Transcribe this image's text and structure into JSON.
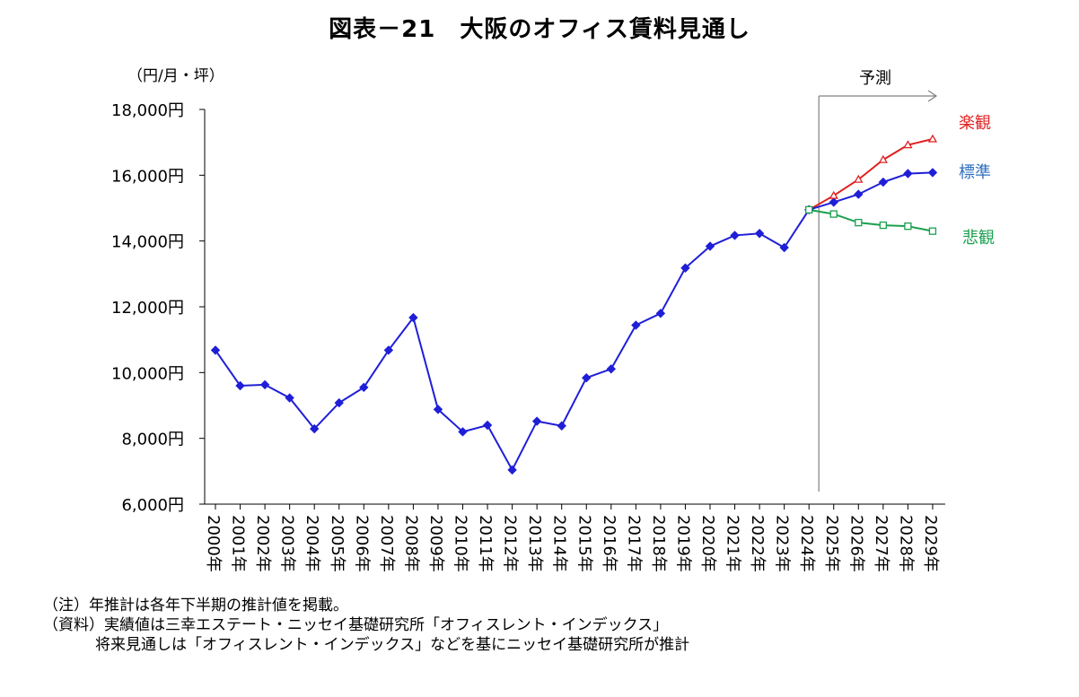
{
  "title": "図表－21　大阪のオフィス賃料見通し",
  "notes": {
    "note": "（注）年推計は各年下半期の推計値を掲載。",
    "source1": "（資料）実績値は三幸エステート・ニッセイ基礎研究所「オフィスレント・インデックス」",
    "source2": "将来見通しは「オフィスレント・インデックス」などを基にニッセイ基礎研究所が推計"
  },
  "chart_data": {
    "type": "line",
    "unit_label": "（円/月・坪）",
    "forecast_label": "予測",
    "categories": [
      "2000年",
      "2001年",
      "2002年",
      "2003年",
      "2004年",
      "2005年",
      "2006年",
      "2007年",
      "2008年",
      "2009年",
      "2010年",
      "2011年",
      "2012年",
      "2013年",
      "2014年",
      "2015年",
      "2016年",
      "2017年",
      "2018年",
      "2019年",
      "2020年",
      "2021年",
      "2022年",
      "2023年",
      "2024年",
      "2025年",
      "2026年",
      "2027年",
      "2028年",
      "2029年"
    ],
    "ylim": [
      6000,
      18000
    ],
    "yticks": [
      6000,
      8000,
      10000,
      12000,
      14000,
      16000,
      18000
    ],
    "ytick_labels": [
      "6,000円",
      "8,000円",
      "10,000円",
      "12,000円",
      "14,000円",
      "16,000円",
      "18,000円"
    ],
    "forecast_start": "2024年",
    "series": [
      {
        "name": "標準",
        "color": "#1f1fd8",
        "marker": "diamond",
        "label_color": "#2f6fbf",
        "values": [
          10680,
          9600,
          9630,
          9230,
          8290,
          9080,
          9550,
          10680,
          11670,
          8880,
          8200,
          8400,
          7040,
          8520,
          8380,
          9840,
          10110,
          11440,
          11800,
          13180,
          13840,
          14170,
          14230,
          13800,
          14950,
          15180,
          15420,
          15790,
          16050,
          16080
        ]
      },
      {
        "name": "楽観",
        "color": "#e02020",
        "marker": "triangle",
        "label_color": "#e02020",
        "values": [
          null,
          null,
          null,
          null,
          null,
          null,
          null,
          null,
          null,
          null,
          null,
          null,
          null,
          null,
          null,
          null,
          null,
          null,
          null,
          null,
          null,
          null,
          null,
          null,
          14950,
          15380,
          15870,
          16470,
          16920,
          17100
        ]
      },
      {
        "name": "悲観",
        "color": "#1aa050",
        "marker": "square",
        "label_color": "#1aa050",
        "values": [
          null,
          null,
          null,
          null,
          null,
          null,
          null,
          null,
          null,
          null,
          null,
          null,
          null,
          null,
          null,
          null,
          null,
          null,
          null,
          null,
          null,
          null,
          null,
          null,
          14950,
          14820,
          14560,
          14480,
          14450,
          14300
        ]
      }
    ]
  }
}
